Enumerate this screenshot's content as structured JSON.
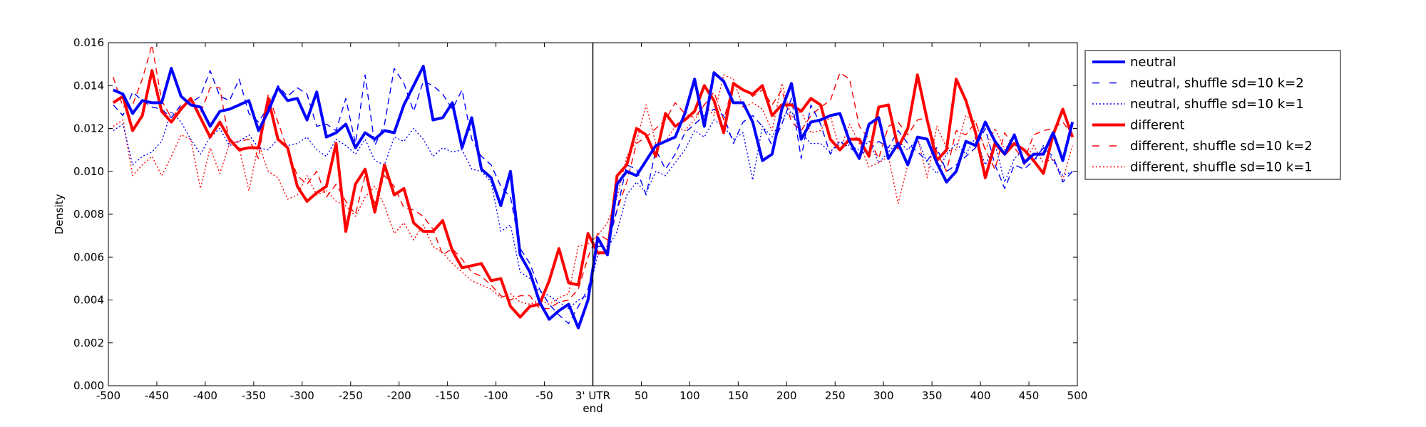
{
  "chart_data": {
    "type": "line",
    "xlabel": "",
    "ylabel": "Density",
    "xlim": [
      -500,
      500
    ],
    "ylim": [
      0.0,
      0.016
    ],
    "x_ticks": [
      -500,
      -450,
      -400,
      -350,
      -300,
      -250,
      -200,
      -150,
      -100,
      -50,
      0,
      50,
      100,
      150,
      200,
      250,
      300,
      350,
      400,
      450,
      500
    ],
    "x_tick_labels": [
      "-500",
      "-450",
      "-400",
      "-350",
      "-300",
      "-250",
      "-200",
      "-150",
      "-100",
      "-50",
      "3' UTR",
      "50",
      "100",
      "150",
      "200",
      "250",
      "300",
      "350",
      "400",
      "450",
      "500"
    ],
    "x_tick_sublabel": "end",
    "y_ticks": [
      0.0,
      0.002,
      0.004,
      0.006,
      0.008,
      0.01,
      0.012,
      0.014,
      0.016
    ],
    "y_tick_labels": [
      "0.000",
      "0.002",
      "0.004",
      "0.006",
      "0.008",
      "0.010",
      "0.012",
      "0.014",
      "0.016"
    ],
    "vline_x": 0,
    "legend_position": "outside-right-top",
    "grid": false,
    "x": [
      -495,
      -485,
      -475,
      -465,
      -455,
      -445,
      -435,
      -425,
      -415,
      -405,
      -395,
      -385,
      -375,
      -365,
      -355,
      -345,
      -335,
      -325,
      -315,
      -305,
      -295,
      -285,
      -275,
      -265,
      -255,
      -245,
      -235,
      -225,
      -215,
      -205,
      -195,
      -185,
      -175,
      -165,
      -155,
      -145,
      -135,
      -125,
      -115,
      -105,
      -95,
      -85,
      -75,
      -65,
      -55,
      -45,
      -35,
      -25,
      -15,
      -5,
      5,
      15,
      25,
      35,
      45,
      55,
      65,
      75,
      85,
      95,
      105,
      115,
      125,
      135,
      145,
      155,
      165,
      175,
      185,
      195,
      205,
      215,
      225,
      235,
      245,
      255,
      265,
      275,
      285,
      295,
      305,
      315,
      325,
      335,
      345,
      355,
      365,
      375,
      385,
      395,
      405,
      415,
      425,
      435,
      445,
      455,
      465,
      475,
      485,
      495
    ],
    "series": [
      {
        "name": "neutral",
        "color": "#0000ff",
        "style": "solid-thick",
        "values": [
          0.0138,
          0.0136,
          0.0127,
          0.0133,
          0.0132,
          0.0132,
          0.0148,
          0.0135,
          0.0131,
          0.013,
          0.0121,
          0.0128,
          0.0129,
          0.0131,
          0.0133,
          0.0119,
          0.0128,
          0.0139,
          0.0133,
          0.0134,
          0.0124,
          0.0137,
          0.0116,
          0.0118,
          0.0122,
          0.0111,
          0.0118,
          0.0115,
          0.0119,
          0.0118,
          0.0131,
          0.014,
          0.0149,
          0.0124,
          0.0125,
          0.0132,
          0.0111,
          0.0125,
          0.0101,
          0.0097,
          0.0084,
          0.01,
          0.0061,
          0.0053,
          0.0039,
          0.0031,
          0.0035,
          0.0038,
          0.0027,
          0.004,
          0.0069,
          0.0061,
          0.0094,
          0.01,
          0.0098,
          0.0105,
          0.0112,
          0.0114,
          0.0116,
          0.0127,
          0.0143,
          0.0121,
          0.0146,
          0.0142,
          0.0132,
          0.0132,
          0.0123,
          0.0105,
          0.0108,
          0.0129,
          0.0141,
          0.0115,
          0.0123,
          0.0124,
          0.0126,
          0.0127,
          0.0114,
          0.0106,
          0.0122,
          0.0125,
          0.0106,
          0.0113,
          0.0103,
          0.0116,
          0.0115,
          0.0104,
          0.0095,
          0.01,
          0.0114,
          0.0112,
          0.0123,
          0.0114,
          0.0108,
          0.0117,
          0.0104,
          0.0108,
          0.0108,
          0.0118,
          0.0105,
          0.0123
        ]
      },
      {
        "name": "neutral, shuffle sd=10 k=2",
        "color": "#0000ff",
        "style": "dashed",
        "values": [
          0.0131,
          0.0126,
          0.0137,
          0.0133,
          0.013,
          0.0129,
          0.0125,
          0.0131,
          0.0132,
          0.0135,
          0.0147,
          0.0135,
          0.0133,
          0.0143,
          0.0127,
          0.0123,
          0.013,
          0.014,
          0.0135,
          0.0139,
          0.0136,
          0.0121,
          0.0122,
          0.0119,
          0.0134,
          0.0113,
          0.0145,
          0.0112,
          0.0122,
          0.0148,
          0.0141,
          0.0128,
          0.0142,
          0.014,
          0.0136,
          0.0129,
          0.0138,
          0.0115,
          0.0107,
          0.0103,
          0.0093,
          0.0088,
          0.0064,
          0.0057,
          0.0045,
          0.0038,
          0.0033,
          0.0029,
          0.0037,
          0.0045,
          0.0065,
          0.0065,
          0.0082,
          0.0103,
          0.0101,
          0.0089,
          0.011,
          0.0101,
          0.0108,
          0.0118,
          0.0122,
          0.0126,
          0.0129,
          0.0126,
          0.0113,
          0.0123,
          0.0126,
          0.0121,
          0.0112,
          0.0122,
          0.0134,
          0.0106,
          0.0131,
          0.0122,
          0.0108,
          0.0114,
          0.0111,
          0.0108,
          0.011,
          0.0114,
          0.0111,
          0.0119,
          0.0113,
          0.0109,
          0.0105,
          0.0111,
          0.01,
          0.0103,
          0.0107,
          0.0111,
          0.012,
          0.0103,
          0.0092,
          0.0103,
          0.0101,
          0.0105,
          0.0111,
          0.0107,
          0.0095,
          0.01
        ]
      },
      {
        "name": "neutral, shuffle sd=10 k=1",
        "color": "#0000ff",
        "style": "dotted",
        "values": [
          0.0119,
          0.0122,
          0.0103,
          0.0107,
          0.0109,
          0.0114,
          0.0128,
          0.0123,
          0.0115,
          0.0108,
          0.0116,
          0.012,
          0.0112,
          0.0114,
          0.0117,
          0.0111,
          0.011,
          0.0115,
          0.0112,
          0.0113,
          0.0116,
          0.011,
          0.0107,
          0.0115,
          0.0112,
          0.0108,
          0.0115,
          0.0105,
          0.0103,
          0.0116,
          0.0114,
          0.012,
          0.0115,
          0.0107,
          0.0111,
          0.0109,
          0.011,
          0.0101,
          0.01,
          0.0095,
          0.0072,
          0.0075,
          0.0053,
          0.005,
          0.0044,
          0.0042,
          0.0039,
          0.0036,
          0.004,
          0.0042,
          0.0061,
          0.0064,
          0.0072,
          0.0089,
          0.0095,
          0.009,
          0.01,
          0.0098,
          0.0104,
          0.011,
          0.0119,
          0.0116,
          0.0124,
          0.0121,
          0.0115,
          0.0118,
          0.0096,
          0.0121,
          0.0116,
          0.0125,
          0.0128,
          0.0118,
          0.0113,
          0.0113,
          0.0109,
          0.0114,
          0.0112,
          0.011,
          0.0114,
          0.0104,
          0.0109,
          0.0114,
          0.011,
          0.0115,
          0.0104,
          0.0099,
          0.0108,
          0.0113,
          0.0108,
          0.0116,
          0.0103,
          0.0113,
          0.0095,
          0.0106,
          0.011,
          0.0104,
          0.0112,
          0.0105,
          0.0098,
          0.01
        ]
      },
      {
        "name": "different",
        "color": "#ff0000",
        "style": "solid-thick",
        "values": [
          0.0132,
          0.0135,
          0.0119,
          0.0126,
          0.0147,
          0.0128,
          0.0123,
          0.0129,
          0.0134,
          0.0125,
          0.0116,
          0.0123,
          0.0115,
          0.011,
          0.0111,
          0.0111,
          0.0134,
          0.0115,
          0.0111,
          0.0093,
          0.0086,
          0.009,
          0.0093,
          0.0113,
          0.0072,
          0.0094,
          0.0101,
          0.0081,
          0.0103,
          0.0089,
          0.0092,
          0.0076,
          0.0072,
          0.0072,
          0.0077,
          0.0063,
          0.0055,
          0.0056,
          0.0057,
          0.0049,
          0.005,
          0.0037,
          0.0032,
          0.0037,
          0.0038,
          0.0049,
          0.0064,
          0.0048,
          0.0047,
          0.0071,
          0.0062,
          0.0062,
          0.0098,
          0.0103,
          0.012,
          0.0117,
          0.0107,
          0.0127,
          0.0121,
          0.0124,
          0.0128,
          0.014,
          0.0133,
          0.0118,
          0.0141,
          0.0138,
          0.0136,
          0.014,
          0.0126,
          0.0131,
          0.0131,
          0.0128,
          0.0134,
          0.0131,
          0.0115,
          0.011,
          0.0115,
          0.0115,
          0.0107,
          0.013,
          0.0131,
          0.0111,
          0.012,
          0.0145,
          0.0124,
          0.0105,
          0.011,
          0.0143,
          0.0133,
          0.0118,
          0.0097,
          0.0113,
          0.0108,
          0.0113,
          0.011,
          0.0105,
          0.0099,
          0.0117,
          0.0129,
          0.0116
        ]
      },
      {
        "name": "different, shuffle sd=10 k=2",
        "color": "#ff0000",
        "style": "dashed",
        "values": [
          0.0144,
          0.013,
          0.0131,
          0.0143,
          0.0159,
          0.0133,
          0.0125,
          0.013,
          0.0133,
          0.0127,
          0.0139,
          0.0139,
          0.0113,
          0.0114,
          0.0115,
          0.0106,
          0.0136,
          0.0123,
          0.011,
          0.0098,
          0.0094,
          0.01,
          0.0088,
          0.0094,
          0.0086,
          0.008,
          0.0098,
          0.0085,
          0.0098,
          0.0093,
          0.0083,
          0.0082,
          0.0079,
          0.0073,
          0.0061,
          0.0064,
          0.0059,
          0.0053,
          0.0051,
          0.0047,
          0.0042,
          0.004,
          0.0042,
          0.0042,
          0.0036,
          0.0036,
          0.0039,
          0.004,
          0.0045,
          0.006,
          0.0071,
          0.0068,
          0.0082,
          0.0095,
          0.0113,
          0.0116,
          0.012,
          0.0124,
          0.0132,
          0.0127,
          0.0125,
          0.0131,
          0.0137,
          0.0124,
          0.0141,
          0.0138,
          0.0135,
          0.0138,
          0.0131,
          0.0138,
          0.0123,
          0.0119,
          0.0126,
          0.013,
          0.0133,
          0.0146,
          0.0143,
          0.0121,
          0.0115,
          0.0106,
          0.0121,
          0.0123,
          0.0117,
          0.0124,
          0.0125,
          0.0109,
          0.01,
          0.0119,
          0.0117,
          0.0123,
          0.011,
          0.0101,
          0.0118,
          0.0111,
          0.0105,
          0.0117,
          0.0119,
          0.012,
          0.0123,
          0.0117
        ]
      },
      {
        "name": "different, shuffle sd=10 k=1",
        "color": "#ff0000",
        "style": "dotted",
        "values": [
          0.0121,
          0.0124,
          0.0098,
          0.0103,
          0.0107,
          0.0098,
          0.0107,
          0.0117,
          0.0115,
          0.0092,
          0.0111,
          0.0099,
          0.0113,
          0.0111,
          0.0091,
          0.0113,
          0.01,
          0.0097,
          0.0087,
          0.0089,
          0.0098,
          0.0089,
          0.0091,
          0.0086,
          0.0084,
          0.0079,
          0.0088,
          0.0093,
          0.0084,
          0.0071,
          0.0076,
          0.0068,
          0.0075,
          0.0065,
          0.0062,
          0.0057,
          0.0053,
          0.0049,
          0.0047,
          0.0045,
          0.0041,
          0.0043,
          0.0039,
          0.0038,
          0.004,
          0.0038,
          0.0041,
          0.0043,
          0.0065,
          0.0066,
          0.007,
          0.0076,
          0.0088,
          0.0107,
          0.0114,
          0.0131,
          0.0113,
          0.0114,
          0.0121,
          0.0119,
          0.0124,
          0.0131,
          0.0126,
          0.0145,
          0.0143,
          0.013,
          0.0132,
          0.0129,
          0.0119,
          0.0141,
          0.0125,
          0.0128,
          0.0118,
          0.0119,
          0.0126,
          0.011,
          0.0122,
          0.0113,
          0.0102,
          0.0104,
          0.0107,
          0.0085,
          0.0103,
          0.0116,
          0.0097,
          0.0121,
          0.0111,
          0.011,
          0.0126,
          0.0123,
          0.011,
          0.012,
          0.011,
          0.0117,
          0.0103,
          0.0112,
          0.0104,
          0.0106,
          0.0096,
          0.0112
        ]
      }
    ]
  }
}
